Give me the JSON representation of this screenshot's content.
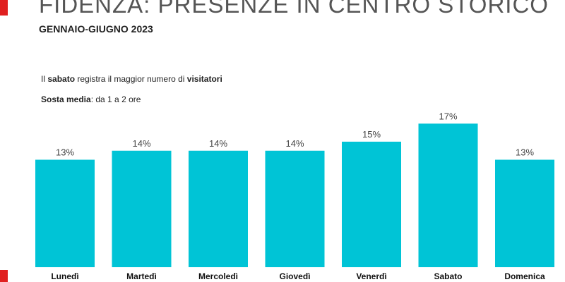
{
  "header": {
    "title": "FIDENZA: PRESENZE IN CENTRO STORICO",
    "subtitle": "GENNAIO-GIUGNO 2023",
    "accent_color": "#e02020"
  },
  "notes": {
    "line1": {
      "a": "Il ",
      "b": "sabato",
      "c": " registra il maggior numero di ",
      "d": "visitatori"
    },
    "line2": {
      "a": "Sosta media",
      "b": ": da 1 a 2 ore"
    }
  },
  "chart_data": {
    "type": "bar",
    "categories": [
      "Lunedì",
      "Martedì",
      "Mercoledì",
      "Giovedì",
      "Venerdì",
      "Sabato",
      "Domenica"
    ],
    "values": [
      13,
      14,
      14,
      14,
      15,
      17,
      13
    ],
    "value_labels": [
      "13%",
      "14%",
      "14%",
      "14%",
      "15%",
      "17%",
      "13%"
    ],
    "unit": "%",
    "bar_color": "#00c4d6",
    "title": "",
    "xlabel": "",
    "ylabel": "",
    "grid": false,
    "legend": "none"
  }
}
